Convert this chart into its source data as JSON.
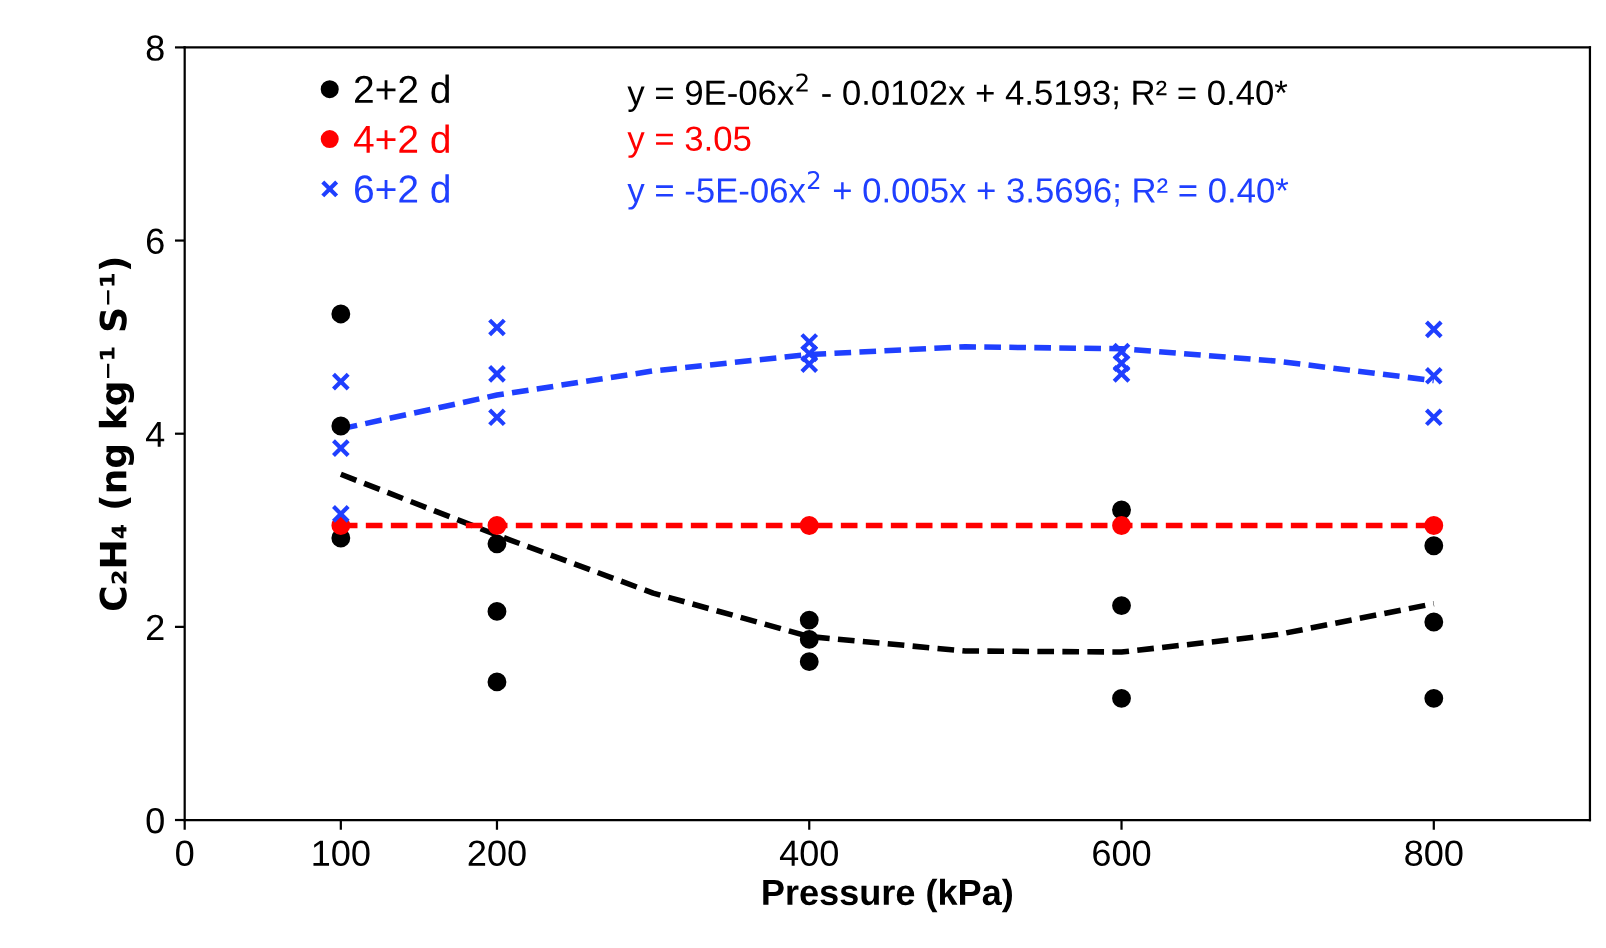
{
  "chart_data": {
    "type": "scatter",
    "xlabel": "Pressure (kPa)",
    "ylabel": "C₂H₄ (ng kg⁻¹ S⁻¹)",
    "xlim": [
      0,
      900
    ],
    "xticks": [
      0,
      100,
      200,
      400,
      600,
      800
    ],
    "ylim": [
      0,
      8
    ],
    "yticks": [
      0,
      2,
      4,
      6,
      8
    ],
    "grid": false,
    "legend": "top left",
    "annotations": [
      "y = 9E-06x$^{2}$ - 0.0102x + 4.5193; R² = 0.40*",
      "y = 3.05",
      "y = -5E-06x$^{2}$ + 0.005x + 3.5696; R² = 0.40*"
    ],
    "series": [
      {
        "name": "2+2 d",
        "marker": "circle",
        "color": "#000000",
        "x": [
          100,
          100,
          100,
          200,
          200,
          200,
          400,
          400,
          400,
          600,
          600,
          600,
          800,
          800,
          800
        ],
        "values": [
          5.24,
          4.08,
          2.92,
          2.86,
          2.16,
          1.43,
          2.07,
          1.87,
          1.64,
          3.21,
          2.22,
          1.26,
          2.84,
          2.05,
          1.26
        ]
      },
      {
        "name": "4+2 d",
        "marker": "circle",
        "color": "#ff0000",
        "x": [
          100,
          200,
          400,
          600,
          800
        ],
        "values": [
          3.05,
          3.05,
          3.05,
          3.05,
          3.05
        ]
      },
      {
        "name": "6+2 d",
        "marker": "cross",
        "color": "#1f3fff",
        "x": [
          100,
          100,
          100,
          200,
          200,
          200,
          400,
          400,
          400,
          600,
          600,
          600,
          800,
          800,
          800
        ],
        "values": [
          4.54,
          3.85,
          3.17,
          5.1,
          4.62,
          4.17,
          4.95,
          4.83,
          4.72,
          4.85,
          4.73,
          4.62,
          5.08,
          4.6,
          4.17
        ]
      },
      {
        "type": "line",
        "line_style": "dashed",
        "color": "#000000",
        "x": [
          100,
          200,
          300,
          400,
          500,
          600,
          700,
          800
        ],
        "values": [
          3.58,
          2.95,
          2.35,
          1.9,
          1.75,
          1.74,
          1.92,
          2.24
        ]
      },
      {
        "type": "line",
        "line_style": "dashed",
        "color": "#ff0000",
        "x": [
          100,
          800
        ],
        "values": [
          3.05,
          3.05
        ]
      },
      {
        "type": "line",
        "line_style": "dashed",
        "color": "#1f3fff",
        "x": [
          100,
          200,
          300,
          400,
          500,
          600,
          700,
          800
        ],
        "values": [
          4.05,
          4.4,
          4.65,
          4.82,
          4.9,
          4.88,
          4.75,
          4.55
        ]
      }
    ]
  }
}
